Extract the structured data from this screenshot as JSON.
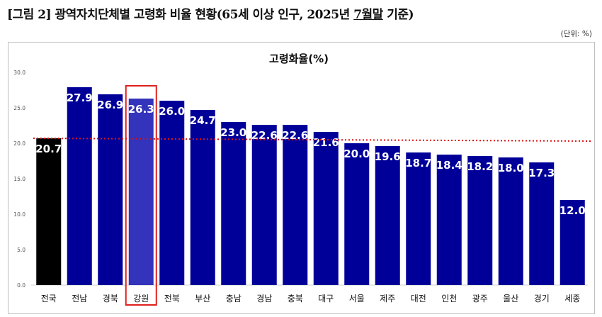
{
  "figure": {
    "title_prefix": "[그림 2] 광역자치단체별 고령화 비율 현황(65세 이상 인구, 2025년 ",
    "title_underlined": "7월말",
    "title_suffix": " 기준)",
    "unit": "(단위: %)"
  },
  "chart_data": {
    "type": "bar",
    "title": "고령화율(%)",
    "categories": [
      "전국",
      "전남",
      "경북",
      "강원",
      "전북",
      "부산",
      "충남",
      "경남",
      "충북",
      "대구",
      "서울",
      "제주",
      "대전",
      "인천",
      "광주",
      "울산",
      "경기",
      "세종"
    ],
    "values": [
      20.7,
      27.9,
      26.9,
      26.3,
      26.0,
      24.7,
      23.0,
      22.6,
      22.6,
      21.6,
      20.0,
      19.6,
      18.7,
      18.4,
      18.2,
      18.0,
      17.3,
      12.0
    ],
    "value_labels": [
      "20.7",
      "27.9",
      "26.9",
      "26.3",
      "26.0",
      "24.7",
      "23.0",
      "22.6",
      "22.6",
      "21.6",
      "20.0",
      "19.6",
      "18.7",
      "18.4",
      "18.2",
      "18.0",
      "17.3",
      "12.0"
    ],
    "yticks": [
      "0.0",
      "5.0",
      "10.0",
      "15.0",
      "20.0",
      "25.0",
      "30.0"
    ],
    "ylim": [
      0,
      30
    ],
    "reference_line": 20.7,
    "highlight_category": "강원",
    "colors": {
      "bar": "#000099",
      "national_bar": "#000000",
      "highlight_bar": "#3333bb",
      "highlight_box": "#e0201e",
      "reference_line": "#e01010",
      "value_label": "#ffffff"
    },
    "grid": false,
    "legend": "none"
  }
}
